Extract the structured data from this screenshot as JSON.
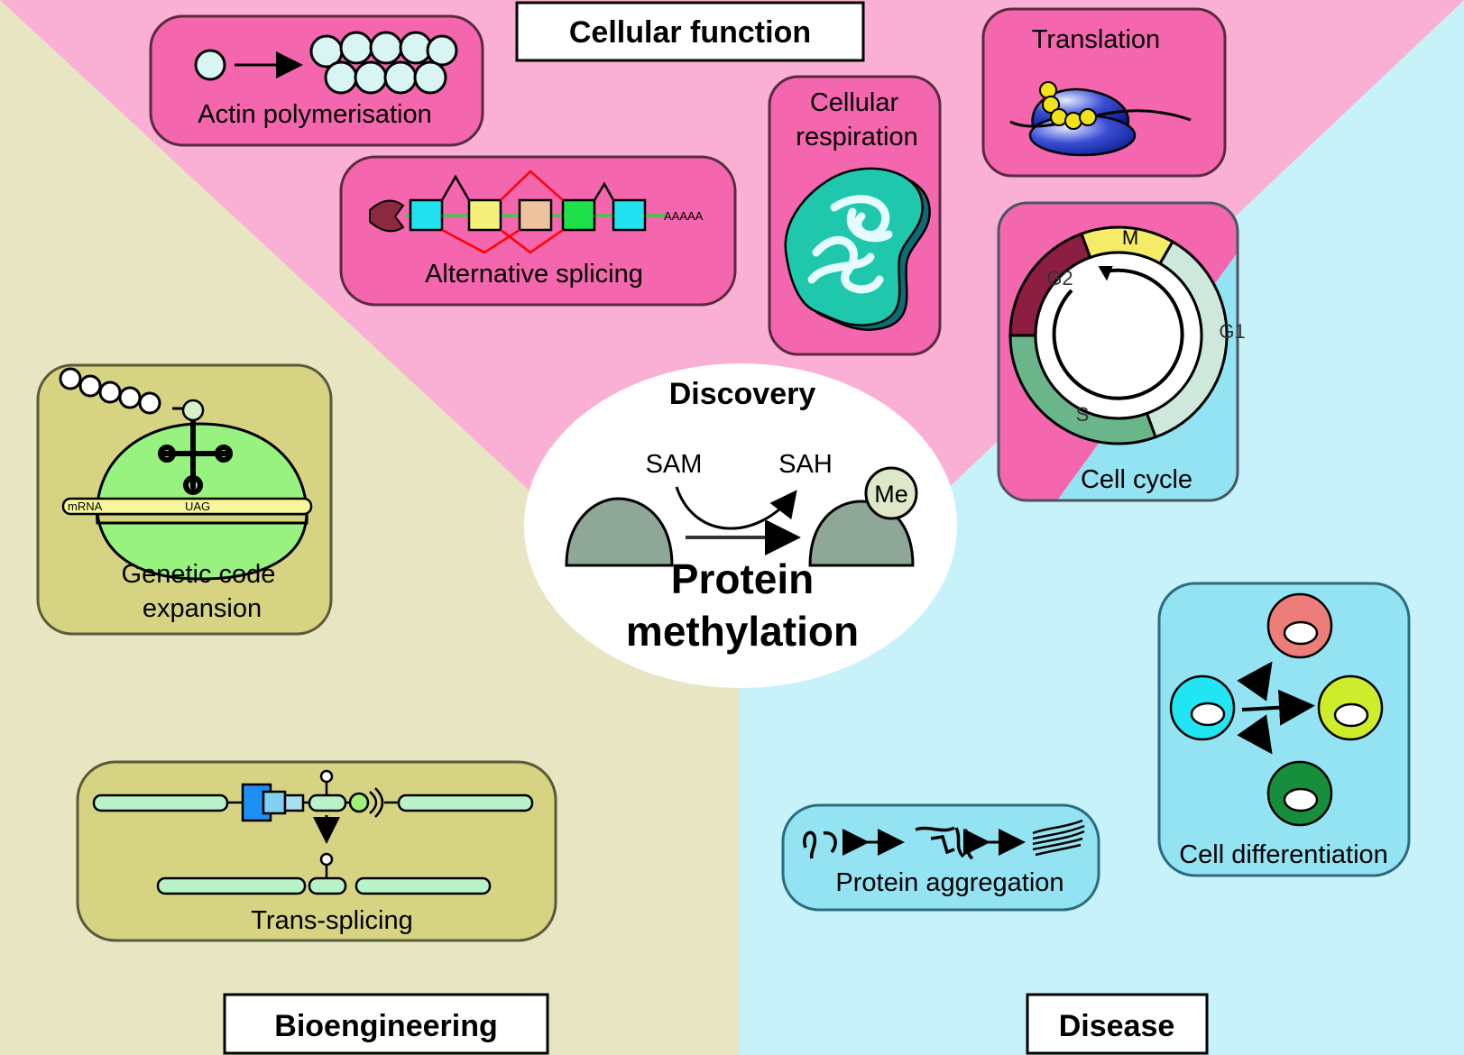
{
  "colors": {
    "cellular_bg": "#f9b0d4",
    "bioengineering_bg": "#e8e6c2",
    "disease_bg": "#c7f2f9",
    "cellular_panel": "#f466ad",
    "bio_panel": "#d6d483",
    "disease_panel": "#93e3f2"
  },
  "sections": {
    "cellular": "Cellular function",
    "bioengineering": "Bioengineering",
    "disease": "Disease"
  },
  "center": {
    "discovery": "Discovery",
    "sam": "SAM",
    "sah": "SAH",
    "me": "Me",
    "title_line1": "Protein",
    "title_line2": "methylation"
  },
  "panels": {
    "actin": "Actin polymerisation",
    "splicing": "Alternative splicing",
    "splicing_tail": "AAAAA",
    "respiration_line1": "Cellular",
    "respiration_line2": "respiration",
    "translation": "Translation",
    "cell_cycle": "Cell cycle",
    "phase_m": "M",
    "phase_g1": "G1",
    "phase_g2": "G2",
    "phase_s": "S",
    "genetic_line1": "Genetic code",
    "genetic_line2": "expansion",
    "mrna": "mRNA",
    "codon": "UAG",
    "trans_splicing": "Trans-splicing",
    "aggregation": "Protein aggregation",
    "differentiation": "Cell differentiation"
  }
}
